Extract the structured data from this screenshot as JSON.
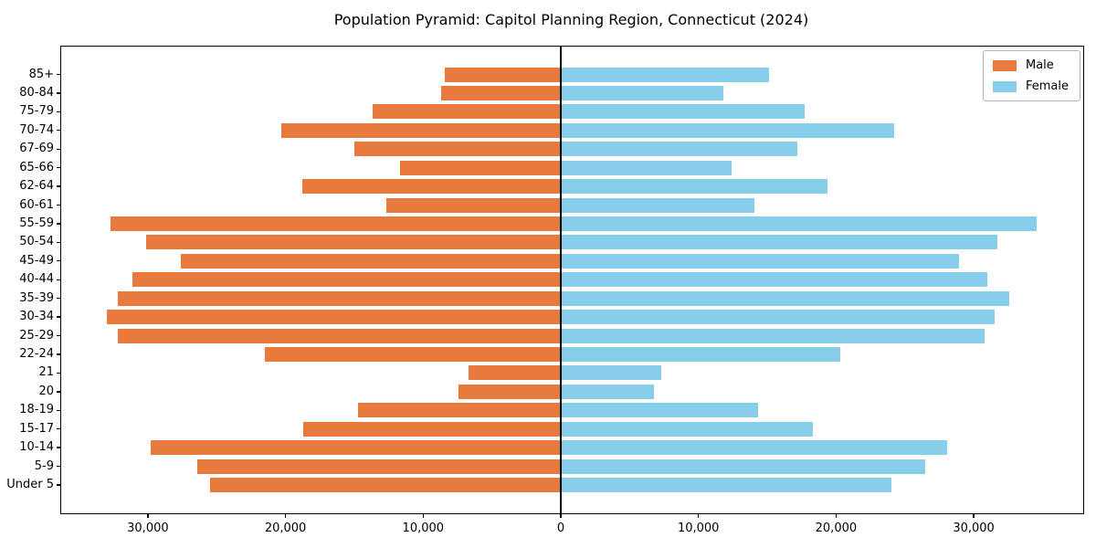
{
  "colors": {
    "male": "#E87A3E",
    "female": "#87CEEB",
    "axis": "#000000",
    "legend_border": "#b3b3b3",
    "background": "#ffffff"
  },
  "chart_data": {
    "type": "bar",
    "variant": "population-pyramid",
    "title": "Population Pyramid: Capitol Planning Region, Connecticut (2024)",
    "xlabel": "",
    "ylabel": "",
    "grid": false,
    "legend_position": "upper-right",
    "categories": [
      "85+",
      "80-84",
      "75-79",
      "70-74",
      "67-69",
      "65-66",
      "62-64",
      "60-61",
      "55-59",
      "50-54",
      "45-49",
      "40-44",
      "35-39",
      "30-34",
      "25-29",
      "22-24",
      "21",
      "20",
      "18-19",
      "15-17",
      "10-14",
      "5-9",
      "Under 5"
    ],
    "series": [
      {
        "name": "Male",
        "side": "left",
        "color": "#E87A3E",
        "values": [
          8400,
          8700,
          13700,
          20300,
          15000,
          11700,
          18800,
          12700,
          32700,
          30100,
          27600,
          31100,
          32200,
          33000,
          32200,
          21500,
          6700,
          7400,
          14700,
          18700,
          29800,
          26400,
          25500
        ]
      },
      {
        "name": "Female",
        "side": "right",
        "color": "#87CEEB",
        "values": [
          15100,
          11800,
          17700,
          24200,
          17200,
          12400,
          19400,
          14100,
          34600,
          31700,
          28900,
          31000,
          32600,
          31500,
          30800,
          20300,
          7300,
          6800,
          14300,
          18300,
          28100,
          26500,
          24000
        ]
      }
    ],
    "x_tick_values": [
      -30000,
      -20000,
      -10000,
      0,
      10000,
      20000,
      30000
    ],
    "x_tick_labels": [
      "30,000",
      "20,000",
      "10,000",
      "0",
      "10,000",
      "20,000",
      "30,000"
    ],
    "xlim": [
      -36300,
      37950
    ]
  }
}
